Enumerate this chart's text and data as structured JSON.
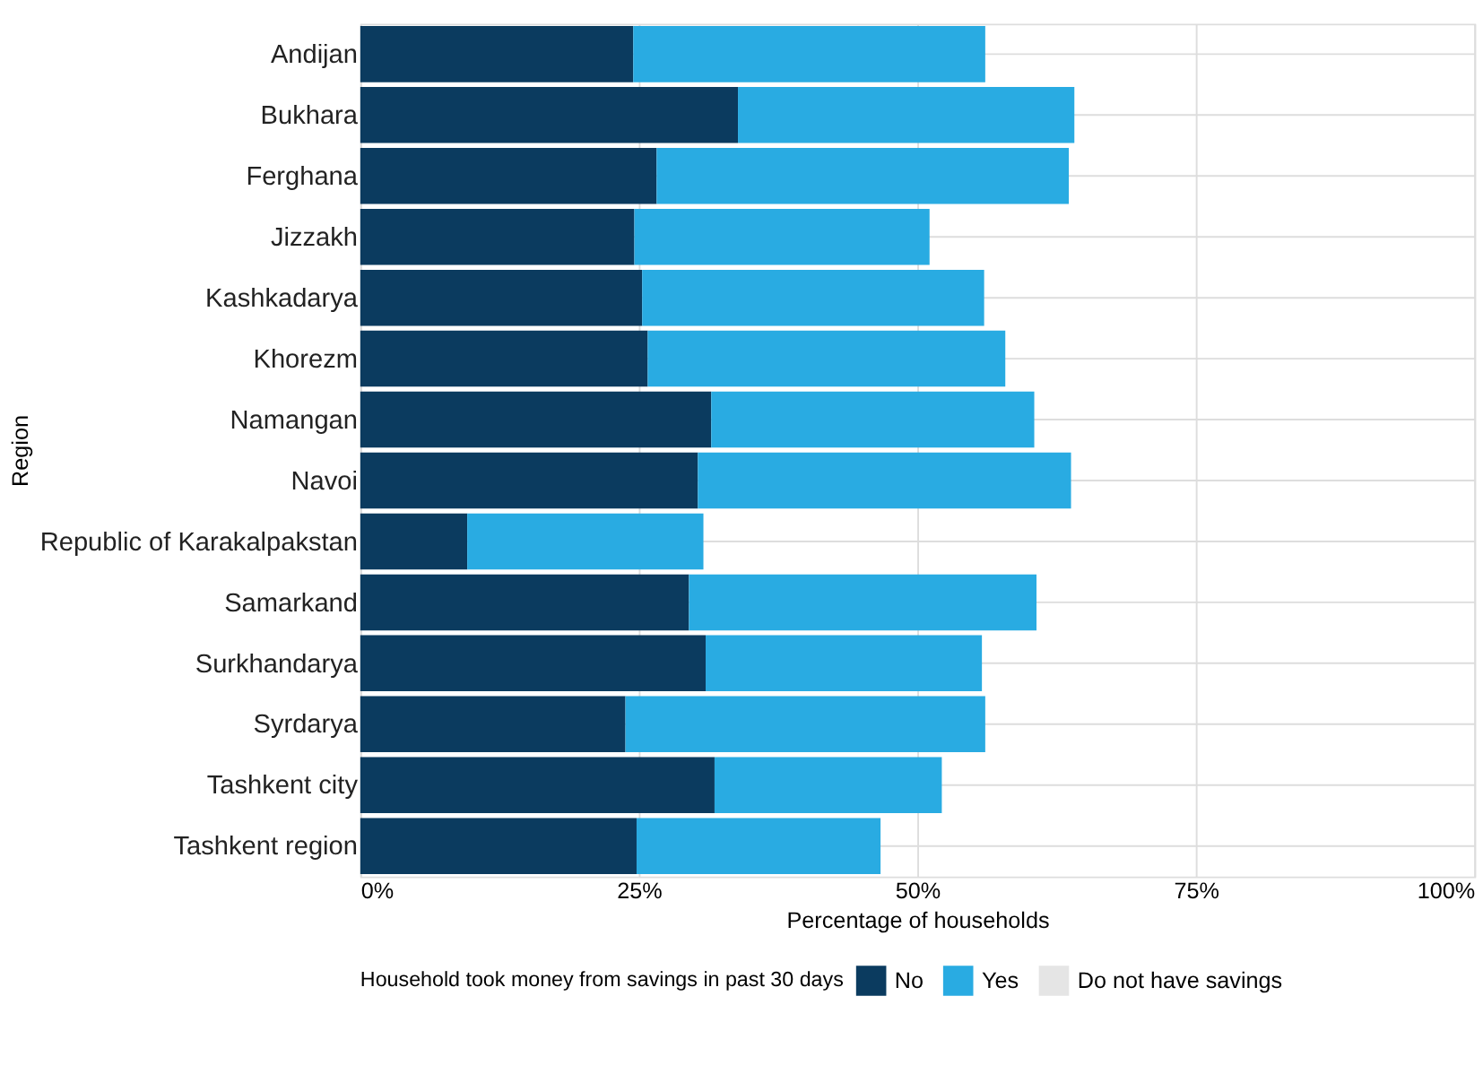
{
  "chart_data": {
    "type": "bar",
    "orientation": "horizontal",
    "stacked": true,
    "xlabel": "Percentage of households",
    "ylabel": "Region",
    "legend_title": "Household took money from savings in past 30 days",
    "legend": "bottom",
    "grid": true,
    "categories": [
      "Andijan",
      "Bukhara",
      "Ferghana",
      "Jizzakh",
      "Kashkadarya",
      "Khorezm",
      "Namangan",
      "Navoi",
      "Republic of\nKarakalpakstan",
      "Samarkand",
      "Surkhandarya",
      "Syrdarya",
      "Tashkent city",
      "Tashkent region"
    ],
    "xlim": [
      0,
      100
    ],
    "xticks": [
      {
        "value": 0,
        "label": "0%"
      },
      {
        "value": 25,
        "label": "25%"
      },
      {
        "value": 50,
        "label": "50%"
      },
      {
        "value": 75,
        "label": "75%"
      },
      {
        "value": 100,
        "label": "100%"
      }
    ],
    "series": [
      {
        "name": "No",
        "color": "#0b3b5f",
        "values": [
          24.5,
          33.9,
          26.6,
          24.6,
          25.3,
          25.8,
          31.5,
          30.3,
          9.6,
          29.5,
          31.0,
          23.8,
          31.8,
          24.8
        ]
      },
      {
        "name": "Yes",
        "color": "#29abe2",
        "values": [
          31.6,
          30.2,
          37.0,
          26.5,
          30.7,
          32.1,
          29.0,
          33.5,
          21.2,
          31.2,
          24.8,
          32.3,
          20.4,
          21.9
        ]
      },
      {
        "name": "Do not have savings",
        "color": "#e5e5e5",
        "values": [
          null,
          null,
          null,
          null,
          null,
          null,
          null,
          null,
          null,
          null,
          null,
          null,
          null,
          null
        ]
      }
    ]
  }
}
